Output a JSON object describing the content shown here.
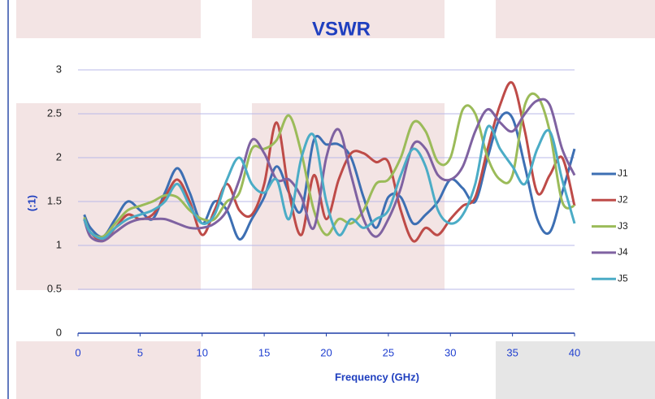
{
  "chart_data": {
    "type": "line",
    "title": "VSWR",
    "x_label": "Frequency (GHz)",
    "y_label": "(:1)",
    "x": [
      0.5,
      1,
      2,
      3,
      4,
      5,
      6,
      7,
      8,
      9,
      10,
      11,
      12,
      13,
      14,
      15,
      16,
      17,
      18,
      19,
      20,
      21,
      22,
      23,
      24,
      25,
      26,
      27,
      28,
      29,
      30,
      31,
      32,
      33,
      34,
      35,
      36,
      37,
      38,
      39,
      40
    ],
    "series": [
      {
        "name": "J1",
        "color": "#3d6fb3",
        "values": [
          1.35,
          1.2,
          1.1,
          1.3,
          1.5,
          1.4,
          1.3,
          1.6,
          1.88,
          1.6,
          1.25,
          1.5,
          1.4,
          1.07,
          1.3,
          1.55,
          1.9,
          1.6,
          1.4,
          2.2,
          2.15,
          2.15,
          2.0,
          1.55,
          1.2,
          1.55,
          1.55,
          1.25,
          1.35,
          1.5,
          1.75,
          1.65,
          1.5,
          2.0,
          2.45,
          2.45,
          1.9,
          1.3,
          1.15,
          1.6,
          2.1
        ]
      },
      {
        "name": "J2",
        "color": "#be4b48",
        "values": [
          1.3,
          1.15,
          1.05,
          1.2,
          1.35,
          1.3,
          1.35,
          1.55,
          1.75,
          1.5,
          1.12,
          1.4,
          1.7,
          1.4,
          1.35,
          1.7,
          2.4,
          1.6,
          1.12,
          1.8,
          1.3,
          1.75,
          2.05,
          2.05,
          1.95,
          1.95,
          1.4,
          1.05,
          1.2,
          1.12,
          1.3,
          1.45,
          1.55,
          2.1,
          2.6,
          2.85,
          2.3,
          1.6,
          1.8,
          2.0,
          1.45
        ]
      },
      {
        "name": "J3",
        "color": "#9bbb59",
        "values": [
          1.32,
          1.15,
          1.1,
          1.25,
          1.4,
          1.45,
          1.5,
          1.57,
          1.55,
          1.4,
          1.3,
          1.3,
          1.5,
          1.6,
          2.1,
          2.1,
          2.2,
          2.48,
          2.05,
          1.4,
          1.12,
          1.3,
          1.25,
          1.4,
          1.7,
          1.75,
          2.0,
          2.4,
          2.3,
          1.95,
          2.0,
          2.55,
          2.5,
          2.0,
          1.75,
          1.8,
          2.6,
          2.7,
          2.3,
          1.5,
          1.45
        ]
      },
      {
        "name": "J4",
        "color": "#7f62a1",
        "values": [
          1.3,
          1.1,
          1.05,
          1.15,
          1.25,
          1.3,
          1.3,
          1.3,
          1.25,
          1.2,
          1.2,
          1.25,
          1.4,
          1.75,
          2.2,
          2.05,
          1.75,
          1.75,
          1.55,
          1.2,
          2.0,
          2.32,
          1.8,
          1.3,
          1.1,
          1.3,
          1.65,
          2.15,
          2.1,
          1.8,
          1.75,
          1.9,
          2.3,
          2.55,
          2.4,
          2.3,
          2.5,
          2.65,
          2.6,
          2.1,
          1.8
        ]
      },
      {
        "name": "J5",
        "color": "#4bacc6",
        "values": [
          1.3,
          1.15,
          1.08,
          1.2,
          1.3,
          1.35,
          1.4,
          1.5,
          1.7,
          1.45,
          1.25,
          1.35,
          1.75,
          2.0,
          1.7,
          1.6,
          1.75,
          1.3,
          2.0,
          2.25,
          1.5,
          1.12,
          1.3,
          1.2,
          1.3,
          1.4,
          1.8,
          2.1,
          1.9,
          1.4,
          1.25,
          1.35,
          1.7,
          2.35,
          2.1,
          1.9,
          1.7,
          2.1,
          2.3,
          1.75,
          1.25
        ]
      }
    ],
    "xlim": [
      0,
      40
    ],
    "xticks": [
      0,
      5,
      10,
      15,
      20,
      25,
      30,
      35,
      40
    ],
    "ylim": [
      0,
      3
    ],
    "yticks": [
      0,
      0.5,
      1,
      1.5,
      2,
      2.5,
      3
    ],
    "grid": true,
    "legend": "right"
  }
}
